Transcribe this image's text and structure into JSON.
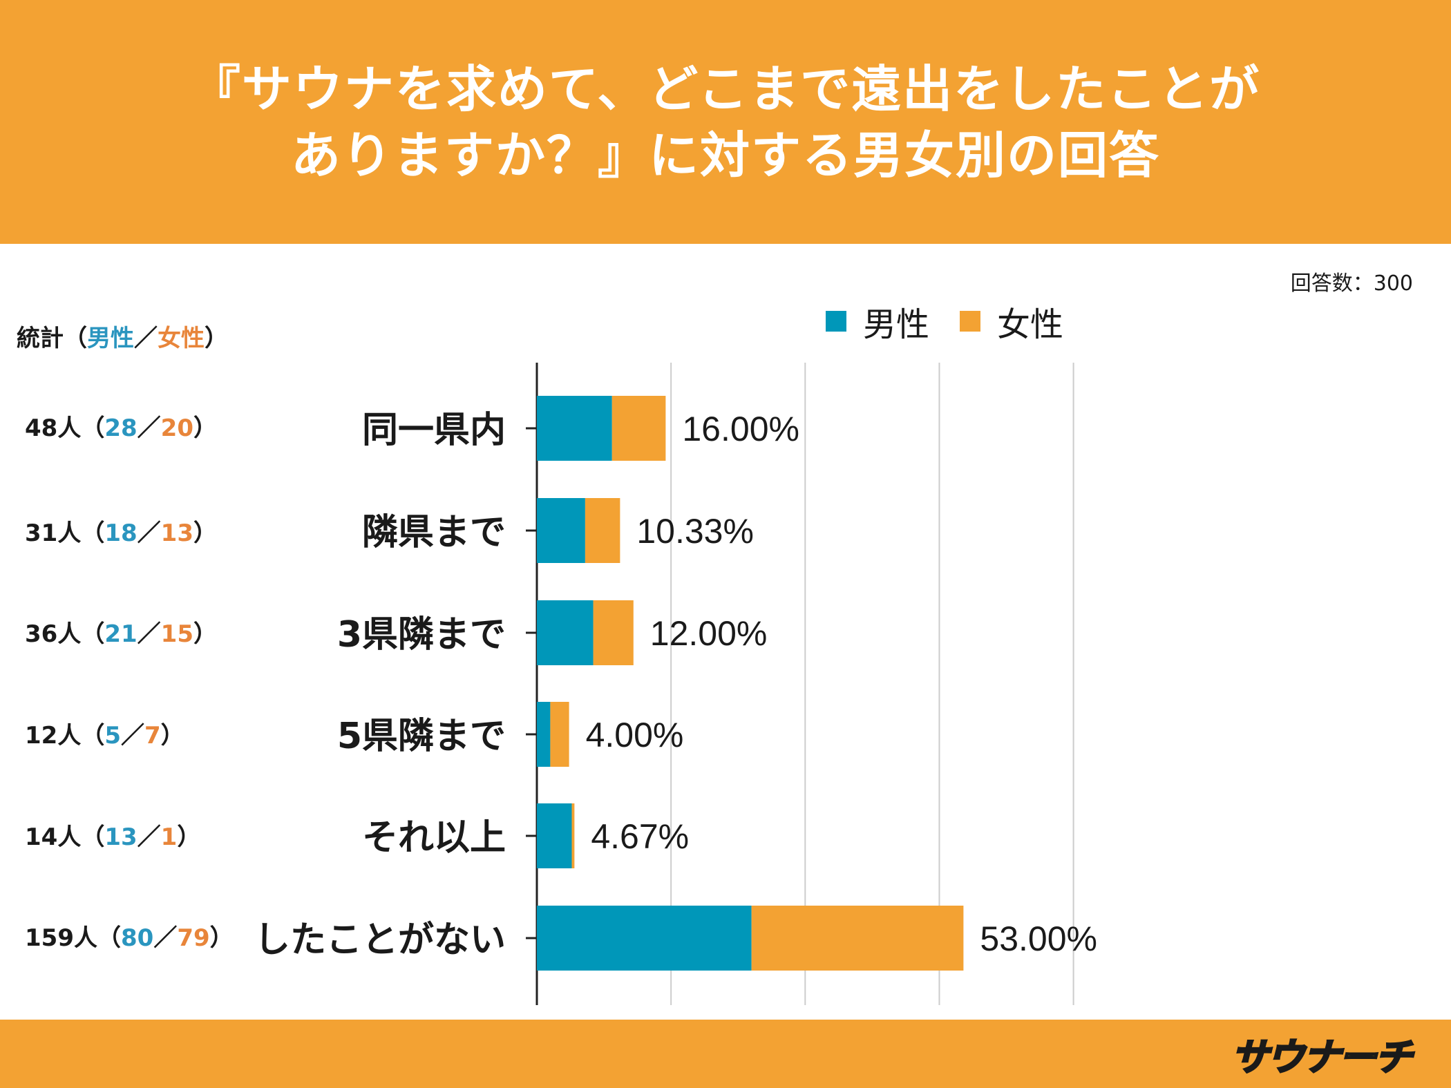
{
  "header": {
    "title_line1": "『サウナを求めて、どこまで遠出をしたことが",
    "title_line2": "ありますか？』に対する男女別の回答"
  },
  "respondents": "回答数：300",
  "stats": {
    "title_prefix": "統計（",
    "male_label": "男性",
    "slash": "／",
    "female_label": "女性",
    "title_suffix": "）",
    "rows": [
      {
        "total": "48人（",
        "male": "28",
        "female": "20",
        "close": "）"
      },
      {
        "total": "31人（",
        "male": "18",
        "female": "13",
        "close": "）"
      },
      {
        "total": "36人（",
        "male": "21",
        "female": "15",
        "close": "）"
      },
      {
        "total": "12人（",
        "male": "5",
        "female": "7",
        "close": "）"
      },
      {
        "total": "14人（",
        "male": "13",
        "female": "1",
        "close": "）"
      },
      {
        "total": "159人（",
        "male": "80",
        "female": "79",
        "close": "）"
      }
    ]
  },
  "legend": {
    "male": "男性",
    "female": "女性"
  },
  "colors": {
    "male": "#0097b9",
    "female": "#f3a233",
    "accent": "#f3a233",
    "grid": "#cccccc"
  },
  "logo_text": "サウナーチ",
  "chart_data": {
    "type": "bar",
    "orientation": "horizontal",
    "stacked": true,
    "categories": [
      "同一県内",
      "隣県まで",
      "3県隣まで",
      "5県隣まで",
      "それ以上",
      "したことがない"
    ],
    "series": [
      {
        "name": "男性",
        "values": [
          28,
          18,
          21,
          5,
          13,
          80
        ]
      },
      {
        "name": "女性",
        "values": [
          20,
          13,
          15,
          7,
          1,
          79
        ]
      }
    ],
    "data_labels": [
      "16.00%",
      "10.33%",
      "12.00%",
      "4.00%",
      "4.67%",
      "53.00%"
    ],
    "xlim": [
      0,
      200
    ],
    "grid": true,
    "legend": "top"
  }
}
